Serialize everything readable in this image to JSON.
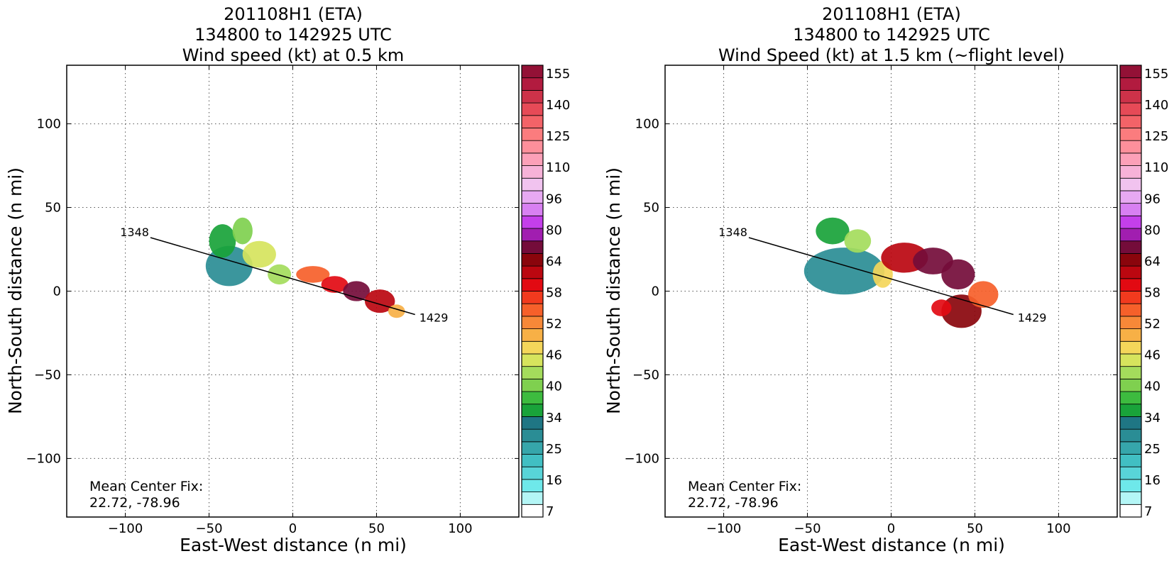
{
  "chart_data": [
    {
      "type": "heatmap",
      "title_lines": [
        "201108H1 (ETA)",
        "134800 to 142925 UTC",
        "Wind speed (kt) at 0.5 km"
      ],
      "xlabel": "East-West distance (n mi)",
      "ylabel": "North-South distance (n mi)",
      "xlim": [
        -135,
        135
      ],
      "ylim": [
        -135,
        135
      ],
      "xticks": [
        -100,
        -50,
        0,
        50,
        100
      ],
      "yticks": [
        -100,
        -50,
        0,
        50,
        100
      ],
      "xtick_labels": [
        "−100",
        "−50",
        "0",
        "50",
        "100"
      ],
      "ytick_labels": [
        "−100",
        "−50",
        "0",
        "50",
        "100"
      ],
      "grid": true,
      "annotation_lines": [
        "Mean Center Fix:",
        "22.72, -78.96"
      ],
      "track": {
        "points": [
          [
            -85,
            32
          ],
          [
            73,
            -14
          ]
        ],
        "start_label": "1348",
        "end_label": "1429"
      },
      "wind_regions": [
        {
          "cx": -38,
          "cy": 15,
          "rx": 14,
          "ry": 12,
          "speed": 26
        },
        {
          "cx": -42,
          "cy": 30,
          "rx": 8,
          "ry": 10,
          "speed": 34
        },
        {
          "cx": -30,
          "cy": 36,
          "rx": 6,
          "ry": 8,
          "speed": 38
        },
        {
          "cx": -20,
          "cy": 22,
          "rx": 10,
          "ry": 8,
          "speed": 43
        },
        {
          "cx": -8,
          "cy": 10,
          "rx": 7,
          "ry": 6,
          "speed": 40
        },
        {
          "cx": 12,
          "cy": 10,
          "rx": 10,
          "ry": 5,
          "speed": 50
        },
        {
          "cx": 25,
          "cy": 4,
          "rx": 8,
          "ry": 5,
          "speed": 55
        },
        {
          "cx": 38,
          "cy": 0,
          "rx": 8,
          "ry": 6,
          "speed": 62
        },
        {
          "cx": 52,
          "cy": -6,
          "rx": 9,
          "ry": 7,
          "speed": 56
        },
        {
          "cx": 62,
          "cy": -12,
          "rx": 5,
          "ry": 4,
          "speed": 47
        }
      ]
    },
    {
      "type": "heatmap",
      "title_lines": [
        "201108H1 (ETA)",
        "134800 to 142925 UTC",
        "Wind Speed (kt) at 1.5 km (~flight level)"
      ],
      "xlabel": "East-West distance (n mi)",
      "ylabel": "North-South distance (n mi)",
      "xlim": [
        -135,
        135
      ],
      "ylim": [
        -135,
        135
      ],
      "xticks": [
        -100,
        -50,
        0,
        50,
        100
      ],
      "yticks": [
        -100,
        -50,
        0,
        50,
        100
      ],
      "xtick_labels": [
        "−100",
        "−50",
        "0",
        "50",
        "100"
      ],
      "ytick_labels": [
        "−100",
        "−50",
        "0",
        "50",
        "100"
      ],
      "grid": true,
      "annotation_lines": [
        "Mean Center Fix:",
        "22.72, -78.96"
      ],
      "track": {
        "points": [
          [
            -85,
            32
          ],
          [
            73,
            -14
          ]
        ],
        "start_label": "1348",
        "end_label": "1429"
      },
      "wind_regions": [
        {
          "cx": -28,
          "cy": 12,
          "rx": 24,
          "ry": 14,
          "speed": 26
        },
        {
          "cx": -35,
          "cy": 36,
          "rx": 10,
          "ry": 8,
          "speed": 35
        },
        {
          "cx": -20,
          "cy": 30,
          "rx": 8,
          "ry": 7,
          "speed": 40
        },
        {
          "cx": -5,
          "cy": 10,
          "rx": 6,
          "ry": 8,
          "speed": 44
        },
        {
          "cx": 8,
          "cy": 20,
          "rx": 14,
          "ry": 9,
          "speed": 57
        },
        {
          "cx": 25,
          "cy": 18,
          "rx": 12,
          "ry": 8,
          "speed": 60
        },
        {
          "cx": 40,
          "cy": 10,
          "rx": 10,
          "ry": 9,
          "speed": 62
        },
        {
          "cx": 42,
          "cy": -12,
          "rx": 12,
          "ry": 10,
          "speed": 58
        },
        {
          "cx": 55,
          "cy": -2,
          "rx": 9,
          "ry": 8,
          "speed": 50
        },
        {
          "cx": 30,
          "cy": -10,
          "rx": 6,
          "ry": 5,
          "speed": 54
        }
      ]
    }
  ],
  "colorbar": {
    "tick_labels": [
      "7",
      "16",
      "25",
      "34",
      "40",
      "46",
      "52",
      "58",
      "64",
      "80",
      "96",
      "110",
      "125",
      "140",
      "155"
    ],
    "colors": [
      "#ffffff",
      "#b4f6f6",
      "#6ee8ea",
      "#58d4d8",
      "#41bfc3",
      "#36a6ab",
      "#2a8d95",
      "#1f7684",
      "#19a33a",
      "#3dbb3f",
      "#7fd04f",
      "#a4dc5c",
      "#d6e45d",
      "#f4d65a",
      "#f7b046",
      "#f78838",
      "#f6602a",
      "#f23a1e",
      "#e20a12",
      "#bb0710",
      "#8a050c",
      "#740c3a",
      "#a11eb0",
      "#c43fea",
      "#d880f2",
      "#e7a9f2",
      "#f1c3ef",
      "#f7b2d8",
      "#fca0b8",
      "#fd8f9b",
      "#fb7c7e",
      "#f36368",
      "#e64a57",
      "#cd3249",
      "#b21b3f",
      "#931136"
    ]
  }
}
